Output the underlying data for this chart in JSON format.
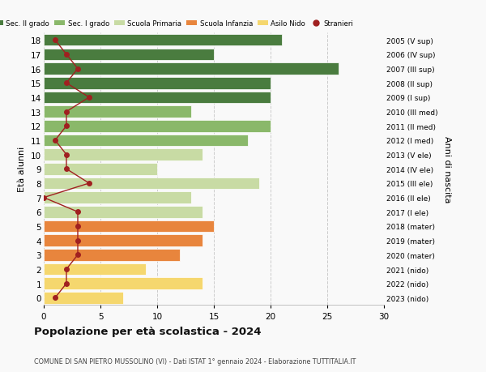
{
  "ages": [
    0,
    1,
    2,
    3,
    4,
    5,
    6,
    7,
    8,
    9,
    10,
    11,
    12,
    13,
    14,
    15,
    16,
    17,
    18
  ],
  "bar_values": [
    7,
    14,
    9,
    12,
    14,
    15,
    14,
    13,
    19,
    10,
    14,
    18,
    20,
    13,
    20,
    20,
    26,
    15,
    21
  ],
  "bar_colors": [
    "#f5d76e",
    "#f5d76e",
    "#f5d76e",
    "#e8853d",
    "#e8853d",
    "#e8853d",
    "#c8dba4",
    "#c8dba4",
    "#c8dba4",
    "#c8dba4",
    "#c8dba4",
    "#8ab86a",
    "#8ab86a",
    "#8ab86a",
    "#4a7c3f",
    "#4a7c3f",
    "#4a7c3f",
    "#4a7c3f",
    "#4a7c3f"
  ],
  "right_labels": [
    "2023 (nido)",
    "2022 (nido)",
    "2021 (nido)",
    "2020 (mater)",
    "2019 (mater)",
    "2018 (mater)",
    "2017 (I ele)",
    "2016 (II ele)",
    "2015 (III ele)",
    "2014 (IV ele)",
    "2013 (V ele)",
    "2012 (I med)",
    "2011 (II med)",
    "2010 (III med)",
    "2009 (I sup)",
    "2008 (II sup)",
    "2007 (III sup)",
    "2006 (IV sup)",
    "2005 (V sup)"
  ],
  "stranieri_values": [
    1,
    2,
    2,
    3,
    3,
    3,
    3,
    0,
    4,
    2,
    2,
    1,
    2,
    2,
    4,
    2,
    3,
    2,
    1
  ],
  "xlim": [
    0,
    30
  ],
  "ylabel_left": "Età alunni",
  "ylabel_right": "Anni di nascita",
  "title": "Popolazione per età scolastica - 2024",
  "subtitle": "COMUNE DI SAN PIETRO MUSSOLINO (VI) - Dati ISTAT 1° gennaio 2024 - Elaborazione TUTTITALIA.IT",
  "legend_entries": [
    {
      "label": "Sec. II grado",
      "color": "#4a7c3f"
    },
    {
      "label": "Sec. I grado",
      "color": "#8ab86a"
    },
    {
      "label": "Scuola Primaria",
      "color": "#c8dba4"
    },
    {
      "label": "Scuola Infanzia",
      "color": "#e8853d"
    },
    {
      "label": "Asilo Nido",
      "color": "#f5d76e"
    },
    {
      "label": "Stranieri",
      "color": "#a02020"
    }
  ],
  "bg_color": "#f9f9f9",
  "grid_color": "#cccccc"
}
